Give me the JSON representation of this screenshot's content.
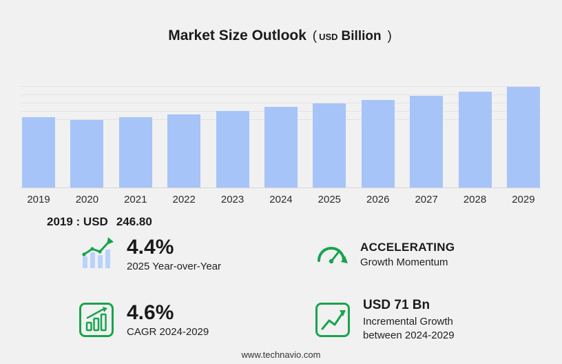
{
  "title": {
    "main": "Market Size Outlook",
    "paren_open": "(",
    "unit_small": "USD",
    "unit_big": "Billion",
    "paren_close": ")"
  },
  "chart_data": {
    "type": "bar",
    "title": "Market Size Outlook (USD Billion)",
    "categories": [
      "2019",
      "2020",
      "2021",
      "2022",
      "2023",
      "2024",
      "2025",
      "2026",
      "2027",
      "2028",
      "2029"
    ],
    "values": [
      246.8,
      238.5,
      248.0,
      258.5,
      270.0,
      284.0,
      296.5,
      309.5,
      323.0,
      338.5,
      355.0
    ],
    "xlabel": "",
    "ylabel": "",
    "ylim": [
      0,
      360
    ],
    "grid": true,
    "legend": "none",
    "bar_color": "#a6c4f7"
  },
  "annotation": {
    "label": "2019 : USD",
    "value": "246.80"
  },
  "stats": [
    {
      "icon": "yoy-bars-trend-icon",
      "value": "4.4%",
      "label": "2025 Year-over-Year"
    },
    {
      "icon": "gauge-icon",
      "value": "ACCELERATING",
      "label": "Growth Momentum"
    },
    {
      "icon": "cagr-chart-box-icon",
      "value": "4.6%",
      "label": "CAGR 2024-2029"
    },
    {
      "icon": "line-growth-box-icon",
      "value": "USD 71 Bn",
      "label": "Incremental Growth between 2024-2029"
    }
  ],
  "footer": {
    "url": "www.technavio.com"
  },
  "colors": {
    "accent_green": "#17a44b",
    "bar_blue": "#a6c4f7",
    "background": "#f1f1f2"
  }
}
